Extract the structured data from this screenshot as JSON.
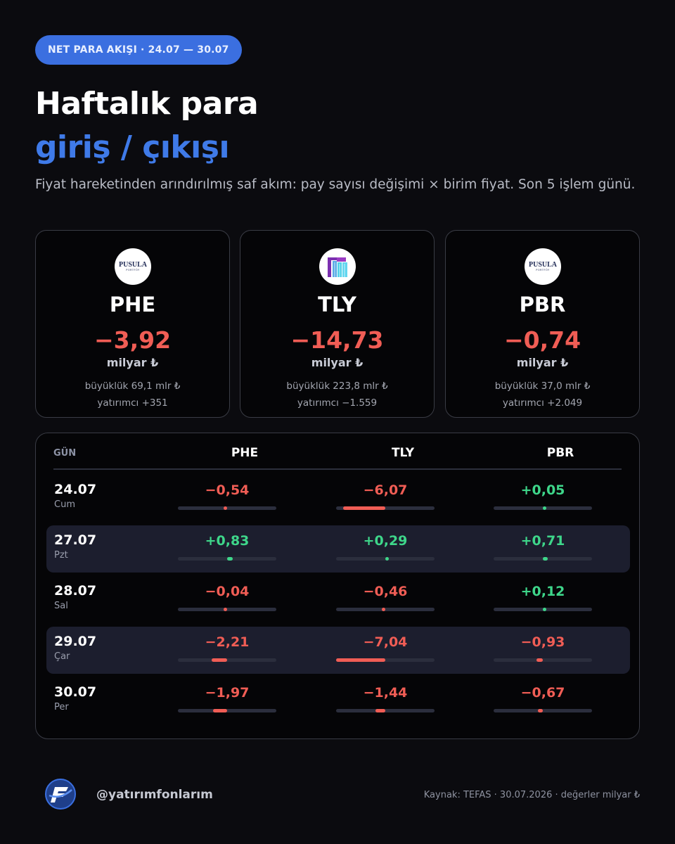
{
  "badge": "NET PARA AKIŞI · 24.07 — 30.07",
  "title": {
    "line1": "Haftalık para",
    "line2": "giriş / çıkışı"
  },
  "subtitle": "Fiyat hareketinden arındırılmış saf akım: pay sayısı değişimi × birim fiyat. Son 5 işlem günü.",
  "cards": [
    {
      "logo": "PUSULA",
      "logo_sub": "PORTFÖY",
      "code": "PHE",
      "value": "−3,92",
      "unit": "milyar ₺",
      "size": "büyüklük 69,1 mlr ₺",
      "investors": "yatırımcı +351"
    },
    {
      "logo": "tly-logo-icon",
      "code": "TLY",
      "value": "−14,73",
      "unit": "milyar ₺",
      "size": "büyüklük 223,8 mlr ₺",
      "investors": "yatırımcı −1.559"
    },
    {
      "logo": "PUSULA",
      "logo_sub": "PORTFÖY",
      "code": "PBR",
      "value": "−0,74",
      "unit": "milyar ₺",
      "size": "büyüklük 37,0 mlr ₺",
      "investors": "yatırımcı +2.049"
    }
  ],
  "table": {
    "headers": [
      "GÜN",
      "PHE",
      "TLY",
      "PBR"
    ],
    "scale_max": 7.04,
    "rows": [
      {
        "date": "24.07",
        "dow": "Cum",
        "values": [
          {
            "text": "−0,54",
            "num": -0.54
          },
          {
            "text": "−6,07",
            "num": -6.07
          },
          {
            "text": "+0,05",
            "num": 0.05
          }
        ]
      },
      {
        "date": "27.07",
        "dow": "Pzt",
        "values": [
          {
            "text": "+0,83",
            "num": 0.83
          },
          {
            "text": "+0,29",
            "num": 0.29
          },
          {
            "text": "+0,71",
            "num": 0.71
          }
        ]
      },
      {
        "date": "28.07",
        "dow": "Sal",
        "values": [
          {
            "text": "−0,04",
            "num": -0.04
          },
          {
            "text": "−0,46",
            "num": -0.46
          },
          {
            "text": "+0,12",
            "num": 0.12
          }
        ]
      },
      {
        "date": "29.07",
        "dow": "Çar",
        "values": [
          {
            "text": "−2,21",
            "num": -2.21
          },
          {
            "text": "−7,04",
            "num": -7.04
          },
          {
            "text": "−0,93",
            "num": -0.93
          }
        ]
      },
      {
        "date": "30.07",
        "dow": "Per",
        "values": [
          {
            "text": "−1,97",
            "num": -1.97
          },
          {
            "text": "−1,44",
            "num": -1.44
          },
          {
            "text": "−0,67",
            "num": -0.67
          }
        ]
      }
    ]
  },
  "footer": {
    "logo": "yatirimfonlarim-logo-icon",
    "handle": "@yatırımfonlarım",
    "source": "Kaynak: TEFAS · 30.07.2026 · değerler milyar ₺"
  },
  "colors": {
    "accent": "#3f7ae8",
    "negative": "#f05d55",
    "positive": "#3ed68a",
    "badge": "#3b6fe0"
  }
}
